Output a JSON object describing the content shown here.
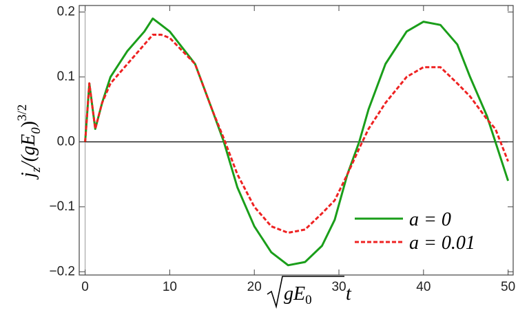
{
  "chart_data": {
    "type": "line",
    "y_label_parts": [
      "j",
      "z",
      "/(gE",
      "0",
      ")",
      "3/2"
    ],
    "x_label_parts": [
      "gE",
      "0",
      "t"
    ],
    "x": [
      0,
      0.5,
      1.2,
      2,
      3,
      5,
      7,
      8,
      9,
      10,
      13,
      15,
      16.4,
      18,
      20,
      22,
      24,
      26,
      28,
      29.5,
      31,
      32.4,
      33.5,
      35.5,
      38,
      40,
      42,
      44,
      45.5,
      47.5,
      48.5,
      50
    ],
    "series": [
      {
        "name": "a = 0",
        "color": "#1a9e1a",
        "dash": false,
        "values": [
          0,
          0.09,
          0.02,
          0.06,
          0.1,
          0.14,
          0.17,
          0.19,
          0.18,
          0.17,
          0.12,
          0.05,
          0,
          -0.07,
          -0.13,
          -0.17,
          -0.19,
          -0.185,
          -0.16,
          -0.12,
          -0.05,
          0,
          0.05,
          0.12,
          0.17,
          0.185,
          0.18,
          0.15,
          0.1,
          0.04,
          0,
          -0.06
        ]
      },
      {
        "name": "a = 0.01",
        "color": "#ee2222",
        "dash": true,
        "values": [
          0,
          0.09,
          0.02,
          0.06,
          0.09,
          0.12,
          0.15,
          0.165,
          0.165,
          0.16,
          0.12,
          0.05,
          0.005,
          -0.05,
          -0.1,
          -0.13,
          -0.14,
          -0.135,
          -0.11,
          -0.09,
          -0.05,
          -0.01,
          0.02,
          0.06,
          0.1,
          0.115,
          0.115,
          0.09,
          0.07,
          0.035,
          0.02,
          -0.03
        ]
      }
    ],
    "xlim": [
      -0.7,
      50.6
    ],
    "ylim": [
      -0.205,
      0.21
    ],
    "xticks": [
      0,
      10,
      20,
      30,
      40,
      50
    ],
    "yticks": [
      {
        "value": -0.2,
        "label": "−0.2"
      },
      {
        "value": -0.1,
        "label": "−0.1"
      },
      {
        "value": 0.0,
        "label": "0.0"
      },
      0.1,
      0.2
    ],
    "legend": "lower right"
  }
}
